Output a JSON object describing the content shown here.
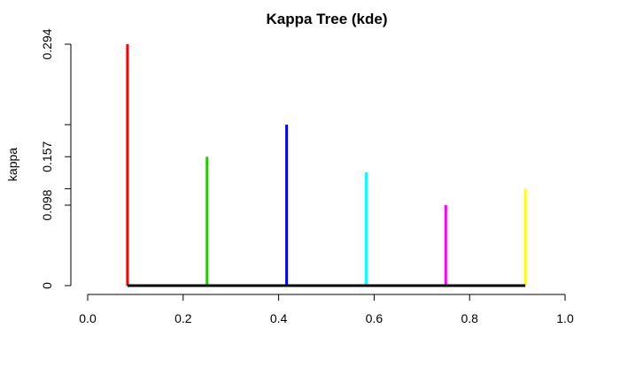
{
  "chart_data": {
    "type": "bar",
    "title": "Kappa Tree (kde)",
    "xlabel": "",
    "ylabel": "kappa",
    "xlim": [
      0.0,
      1.0
    ],
    "ylim": [
      0.0,
      0.294
    ],
    "x_ticks": [
      "0.0",
      "0.2",
      "0.4",
      "0.6",
      "0.8",
      "1.0"
    ],
    "y_ticks": [
      "0",
      "0.098",
      "0.157",
      "0.294"
    ],
    "y_tick_values": [
      0,
      0.098,
      0.157,
      0.294
    ],
    "y_minor_ticks": [
      0.196,
      0.118
    ],
    "grid": false,
    "legend": "none",
    "series": [
      {
        "x": 0.0833,
        "value": 0.294,
        "color": "#ff0000"
      },
      {
        "x": 0.25,
        "value": 0.157,
        "color": "#22cc00"
      },
      {
        "x": 0.4167,
        "value": 0.196,
        "color": "#0000ff"
      },
      {
        "x": 0.5833,
        "value": 0.138,
        "color": "#00ffff"
      },
      {
        "x": 0.75,
        "value": 0.098,
        "color": "#ff00ff"
      },
      {
        "x": 0.9167,
        "value": 0.118,
        "color": "#ffff00"
      }
    ],
    "baseline": {
      "from": 0.0833,
      "to": 0.9167,
      "value": 0,
      "color": "#000000"
    }
  }
}
